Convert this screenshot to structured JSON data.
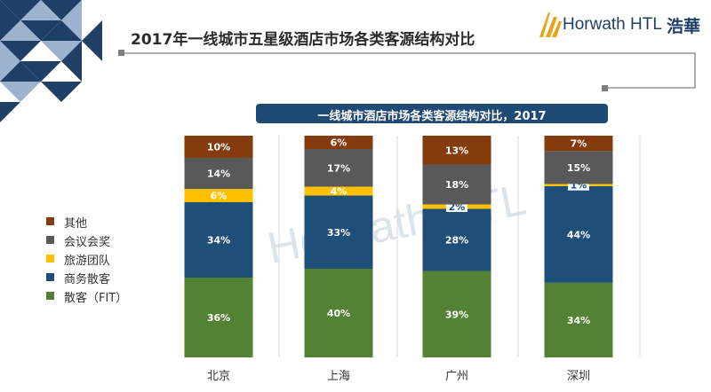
{
  "header": {
    "title": "2017年一线城市五星级酒店市场各类客源结构对比",
    "logo_text": "Horwath HTL",
    "logo_cn": "浩華"
  },
  "watermark": "Horwath HTL",
  "colors": {
    "其他": "#843c0c",
    "会议会奖": "#595959",
    "旅游团队": "#ffc000",
    "商务散客": "#1f4e79",
    "散客（FIT）": "#548235",
    "title_bar": "#1f4a73",
    "deco_dark": "#1f3f66",
    "deco_light": "#9bb3cc"
  },
  "chart_data": {
    "type": "bar",
    "stacked": true,
    "normalized": true,
    "title": "一线城市酒店市场各类客源结构对比，2017",
    "categories": [
      "北京",
      "上海",
      "广州",
      "深圳"
    ],
    "series": [
      {
        "name": "散客（FIT）",
        "values": [
          36,
          40,
          39,
          34
        ],
        "labels": [
          "36%",
          "40%",
          "39%",
          "34%"
        ]
      },
      {
        "name": "商务散客",
        "values": [
          34,
          33,
          28,
          44
        ],
        "labels": [
          "34%",
          "33%",
          "28%",
          "44%"
        ]
      },
      {
        "name": "旅游团队",
        "values": [
          6,
          4,
          2,
          1
        ],
        "labels": [
          "6%",
          "4%",
          "2%",
          "1%"
        ]
      },
      {
        "name": "会议会奖",
        "values": [
          14,
          17,
          18,
          15
        ],
        "labels": [
          "14%",
          "17%",
          "18%",
          "15%"
        ]
      },
      {
        "name": "其他",
        "values": [
          10,
          6,
          13,
          7
        ],
        "labels": [
          "10%",
          "6%",
          "13%",
          "7%"
        ]
      }
    ],
    "legend": [
      "其他",
      "会议会奖",
      "旅游团队",
      "商务散客",
      "散客（FIT）"
    ],
    "legend_position": "left",
    "ylim": [
      0,
      100
    ]
  }
}
